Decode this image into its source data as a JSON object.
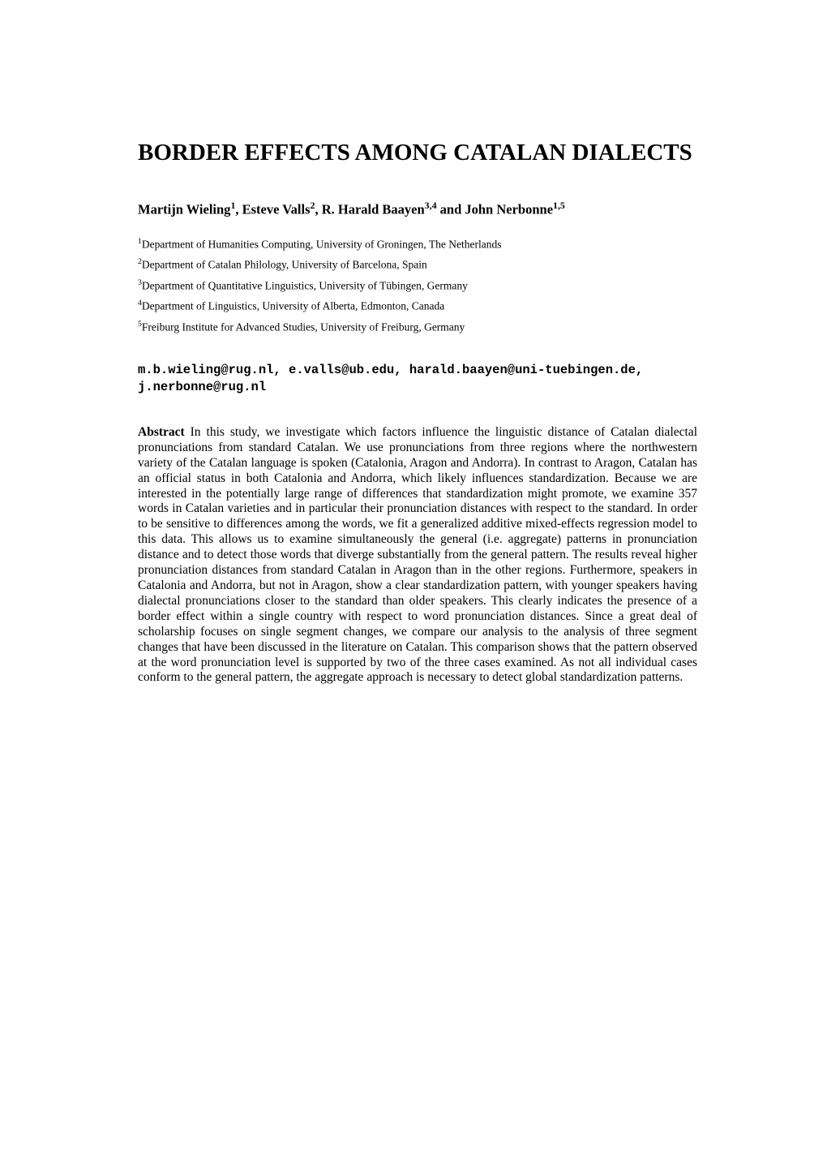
{
  "title": "BORDER EFFECTS AMONG CATALAN DIALECTS",
  "authors_html": "Martijn Wieling<sup>1</sup>, Esteve Valls<sup>2</sup>, R. Harald Baayen<sup>3,4</sup> and John Nerbonne<sup>1,5</sup>",
  "affiliations": [
    {
      "sup": "1",
      "text": "Department of Humanities Computing, University of Groningen, The Netherlands"
    },
    {
      "sup": "2",
      "text": "Department of Catalan Philology, University of Barcelona, Spain"
    },
    {
      "sup": "3",
      "text": "Department of Quantitative Linguistics, University of Tübingen, Germany"
    },
    {
      "sup": "4",
      "text": "Department of Linguistics, University of Alberta, Edmonton, Canada"
    },
    {
      "sup": "5",
      "text": "Freiburg Institute for Advanced Studies, University of Freiburg, Germany"
    }
  ],
  "emails": "m.b.wieling@rug.nl, e.valls@ub.edu, harald.baayen@uni-tuebingen.de, j.nerbonne@rug.nl",
  "abstract_label": "Abstract",
  "abstract_body": " In this study, we investigate which factors influence the linguistic distance of Catalan dialectal pronunciations from standard Catalan. We use pronunciations from three regions where the northwestern variety of the Catalan language is spoken (Catalonia, Aragon and Andorra). In contrast to Aragon, Catalan has an official status in both Catalonia and Andorra, which likely influences standardization. Because we are interested in the potentially large range of differences that standardization might promote, we examine 357 words in Catalan varieties and in particular their pronunciation distances with respect to the standard. In order to be sensitive to differences among the words, we fit a generalized additive mixed-effects regression model to this data. This allows us to examine simultaneously the general (i.e. aggregate) patterns in pronunciation distance and to detect those words that diverge substantially from the general pattern. The results reveal higher pronunciation distances from standard Catalan in Aragon than in the other regions. Furthermore, speakers in Catalonia and Andorra, but not in Aragon, show a clear standardization pattern, with younger speakers having dialectal pronunciations closer to the standard than older speakers. This clearly indicates the presence of a border effect within a single country with respect to word pronunciation distances. Since a great deal of scholarship focuses on single segment changes, we compare our analysis to the analysis of three segment changes that have been discussed in the literature on Catalan. This comparison shows that the pattern observed at the word pronunciation level is supported by two of the three cases examined. As not all individual cases conform to the general pattern, the aggregate approach is necessary to detect global standardization patterns.",
  "colors": {
    "background": "#ffffff",
    "text": "#000000"
  },
  "typography": {
    "title_fontsize": 29,
    "authors_fontsize": 16.5,
    "affiliation_fontsize": 13.5,
    "emails_fontsize": 15.5,
    "abstract_fontsize": 15.5
  }
}
